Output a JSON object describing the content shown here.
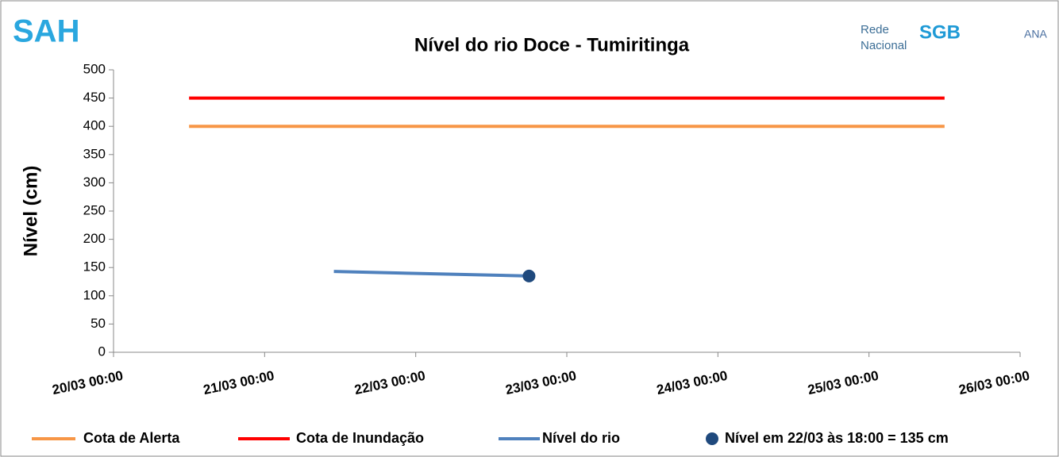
{
  "chart_data": {
    "type": "line",
    "title": "Nível do rio Doce - Tumiritinga",
    "logos": [
      "SAH",
      "Rede",
      "Nacional",
      "SGB",
      "ANA"
    ],
    "ylabel": "Nível (cm)",
    "xlim": [
      "20/03 00:00",
      "26/03 00:00"
    ],
    "xticks": [
      "20/03 00:00",
      "21/03 00:00",
      "22/03 00:00",
      "23/03 00:00",
      "24/03 00:00",
      "25/03 00:00",
      "26/03 00:00"
    ],
    "ylim": [
      0,
      500
    ],
    "yticks": [
      0,
      50,
      100,
      150,
      200,
      250,
      300,
      350,
      400,
      450,
      500
    ],
    "grid": false,
    "legend": "bottom",
    "series": [
      {
        "name": "Cota de Alerta",
        "type": "line",
        "color": "#f79646",
        "x": [
          "20/03 12:00",
          "25/03 12:00"
        ],
        "values": [
          400,
          400
        ]
      },
      {
        "name": "Cota de Inundação",
        "type": "line",
        "color": "#ff0000",
        "x": [
          "20/03 12:00",
          "25/03 12:00"
        ],
        "values": [
          450,
          450
        ]
      },
      {
        "name": "Nível do rio",
        "type": "line",
        "color": "#4f81bd",
        "x": [
          "21/03 11:00",
          "22/03 18:00"
        ],
        "values": [
          143,
          135
        ]
      },
      {
        "name": "Nível em 22/03 às 18:00 = 135 cm",
        "type": "scatter",
        "color": "#1f497d",
        "x": [
          "22/03 18:00"
        ],
        "values": [
          135
        ]
      }
    ]
  }
}
